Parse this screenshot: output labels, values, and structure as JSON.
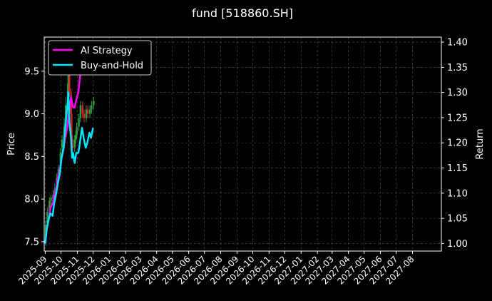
{
  "chart_data": {
    "type": "line",
    "title": "fund [518860.SH]",
    "ylabel_left": "Price",
    "ylabel_right": "Return",
    "xlabel": "",
    "grid": true,
    "legend_placement": "top-left",
    "colors": {
      "background": "#000000",
      "text": "#ffffff",
      "grid": "#555555",
      "ai_strategy": "#ff00ff",
      "buy_and_hold": "#00e5ff",
      "candle_up": "#2ea043",
      "candle_down": "#d62728"
    },
    "x_ticks": [
      "2025-09",
      "2025-10",
      "2025-11",
      "2025-12",
      "2026-01",
      "2026-02",
      "2026-03",
      "2026-04",
      "2026-05",
      "2026-06",
      "2026-07",
      "2026-08",
      "2026-09",
      "2026-10",
      "2026-11",
      "2026-12",
      "2027-01",
      "2027-02",
      "2027-03",
      "2027-04",
      "2027-05",
      "2027-06",
      "2027-07",
      "2027-08"
    ],
    "x_range": [
      "2025-08-30",
      "2027-09-25"
    ],
    "y_left_ticks": [
      7.5,
      8.0,
      8.5,
      9.0,
      9.5
    ],
    "y_left_range": [
      7.39,
      9.9
    ],
    "y_right_ticks": [
      1.0,
      1.05,
      1.1,
      1.15,
      1.2,
      1.25,
      1.3,
      1.35,
      1.4
    ],
    "y_right_range": [
      0.985,
      1.41
    ],
    "series": [
      {
        "name": "AI Strategy",
        "axis": "right",
        "x": [
          "2025-09-01",
          "2025-09-04",
          "2025-09-08",
          "2025-09-11",
          "2025-09-15",
          "2025-09-18",
          "2025-09-22",
          "2025-09-25",
          "2025-09-29",
          "2025-10-02",
          "2025-10-06",
          "2025-10-09",
          "2025-10-13",
          "2025-10-16",
          "2025-10-20",
          "2025-10-22",
          "2025-10-24",
          "2025-10-27",
          "2025-10-30",
          "2025-11-03",
          "2025-11-06",
          "2025-11-10",
          "2025-11-13",
          "2025-11-17",
          "2025-11-19"
        ],
        "values": [
          1.0,
          1.03,
          1.05,
          1.07,
          1.08,
          1.095,
          1.11,
          1.13,
          1.15,
          1.17,
          1.19,
          1.21,
          1.23,
          1.26,
          1.29,
          1.28,
          1.27,
          1.27,
          1.285,
          1.3,
          1.33,
          1.36,
          1.37,
          1.38,
          1.39
        ]
      },
      {
        "name": "Buy-and-Hold",
        "axis": "right",
        "x": [
          "2025-09-01",
          "2025-09-04",
          "2025-09-08",
          "2025-09-11",
          "2025-09-15",
          "2025-09-18",
          "2025-09-22",
          "2025-09-25",
          "2025-09-29",
          "2025-10-02",
          "2025-10-06",
          "2025-10-09",
          "2025-10-13",
          "2025-10-15",
          "2025-10-17",
          "2025-10-20",
          "2025-10-22",
          "2025-10-24",
          "2025-10-27",
          "2025-10-30",
          "2025-11-03",
          "2025-11-06",
          "2025-11-10",
          "2025-11-13",
          "2025-11-17",
          "2025-11-20",
          "2025-11-24",
          "2025-11-27",
          "2025-12-01"
        ],
        "values": [
          1.0,
          1.03,
          1.05,
          1.06,
          1.055,
          1.08,
          1.1,
          1.12,
          1.14,
          1.17,
          1.19,
          1.23,
          1.27,
          1.3,
          1.24,
          1.21,
          1.17,
          1.18,
          1.16,
          1.18,
          1.18,
          1.2,
          1.23,
          1.21,
          1.19,
          1.2,
          1.22,
          1.21,
          1.23
        ]
      }
    ],
    "candles": {
      "axis": "left",
      "x": [
        "2025-09-02",
        "2025-09-05",
        "2025-09-09",
        "2025-09-12",
        "2025-09-16",
        "2025-09-19",
        "2025-09-23",
        "2025-09-26",
        "2025-09-30",
        "2025-10-03",
        "2025-10-07",
        "2025-10-10",
        "2025-10-14",
        "2025-10-16",
        "2025-10-17",
        "2025-10-20",
        "2025-10-21",
        "2025-10-23",
        "2025-10-27",
        "2025-10-29",
        "2025-10-31",
        "2025-11-04",
        "2025-11-07",
        "2025-11-11",
        "2025-11-14",
        "2025-11-18",
        "2025-11-21",
        "2025-11-25",
        "2025-11-28",
        "2025-12-02"
      ],
      "open": [
        7.5,
        7.72,
        7.85,
        7.98,
        8.0,
        8.05,
        8.15,
        8.25,
        8.35,
        8.6,
        8.7,
        8.85,
        9.1,
        9.3,
        9.5,
        9.25,
        9.0,
        8.7,
        8.6,
        8.7,
        8.75,
        8.85,
        8.95,
        9.1,
        9.0,
        8.95,
        9.05,
        9.0,
        9.05,
        9.1
      ],
      "close": [
        7.7,
        7.85,
        7.98,
        8.02,
        8.05,
        8.12,
        8.25,
        8.35,
        8.55,
        8.7,
        8.85,
        9.1,
        9.35,
        9.5,
        9.25,
        9.0,
        8.7,
        8.6,
        8.7,
        8.75,
        8.85,
        8.95,
        9.1,
        9.0,
        8.95,
        9.05,
        9.0,
        9.05,
        9.1,
        9.15
      ],
      "high": [
        7.75,
        7.9,
        8.02,
        8.05,
        8.1,
        8.18,
        8.3,
        8.4,
        8.6,
        8.75,
        8.95,
        9.2,
        9.45,
        9.55,
        9.55,
        9.3,
        9.05,
        8.75,
        8.75,
        8.8,
        8.9,
        9.0,
        9.15,
        9.15,
        9.05,
        9.1,
        9.1,
        9.1,
        9.15,
        9.2
      ],
      "low": [
        7.45,
        7.65,
        7.8,
        7.92,
        7.95,
        8.0,
        8.1,
        8.2,
        8.3,
        8.55,
        8.65,
        8.8,
        9.05,
        9.25,
        9.2,
        8.95,
        8.65,
        8.55,
        8.55,
        8.65,
        8.7,
        8.8,
        8.9,
        8.95,
        8.9,
        8.9,
        8.95,
        8.95,
        9.0,
        9.05
      ]
    }
  }
}
